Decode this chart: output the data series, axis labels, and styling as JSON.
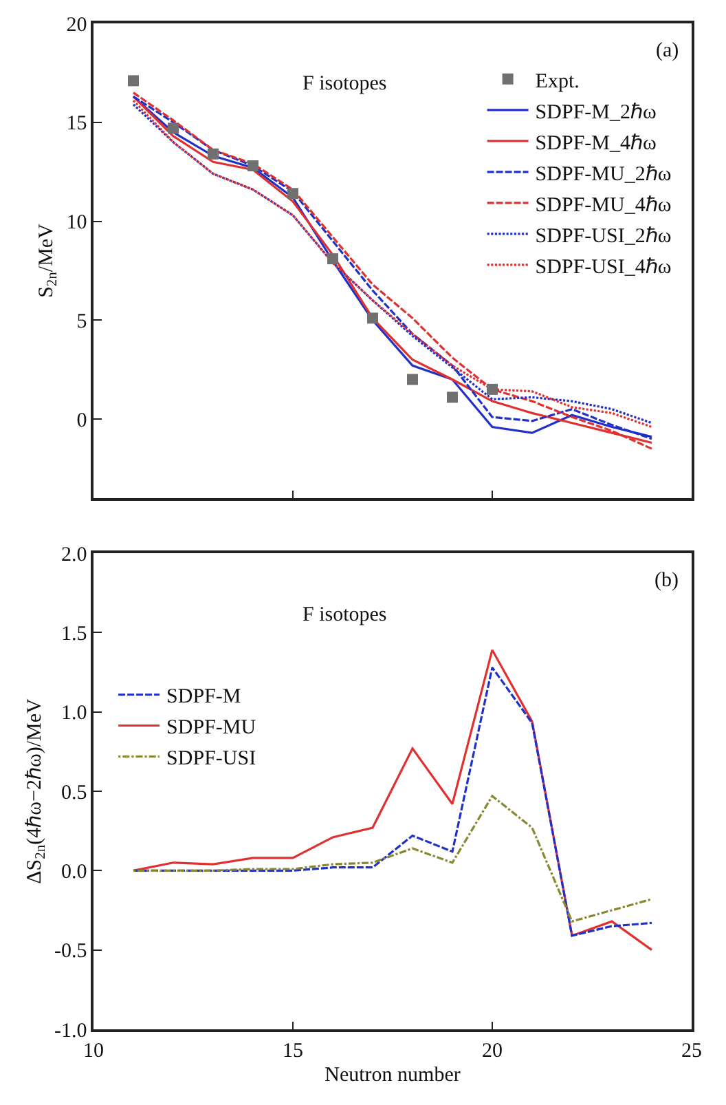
{
  "chart_data": [
    {
      "type": "line",
      "ylabel": "S$_{2n}$/MeV",
      "annotations": [
        "F isotopes",
        "(a)"
      ],
      "x": [
        11,
        12,
        13,
        14,
        15,
        16,
        17,
        18,
        19,
        20,
        21,
        22,
        23,
        24
      ],
      "xlim": [
        10,
        25
      ],
      "xticks": [
        10,
        15,
        20,
        25
      ],
      "ylim": [
        -4,
        20
      ],
      "yticks": [
        0,
        5,
        10,
        15,
        20
      ],
      "legend": "top right",
      "tick_labels": "y",
      "series": [
        {
          "name": "Expt.",
          "type": "scatter",
          "marker": "square",
          "color": "#707070",
          "x": [
            11,
            12,
            13,
            14,
            15,
            16,
            17,
            18,
            19,
            20
          ],
          "values": [
            17.1,
            14.7,
            13.4,
            12.8,
            11.4,
            8.1,
            5.1,
            2.0,
            1.1,
            1.5
          ]
        },
        {
          "name": "SDPF-M_2ℏω",
          "color": "#2030c8",
          "line_style": "solid",
          "values": [
            16.3,
            14.5,
            13.3,
            12.7,
            11.2,
            8.0,
            5.0,
            2.7,
            2.0,
            -0.4,
            -0.7,
            0.2,
            -0.4,
            -0.9
          ]
        },
        {
          "name": "SDPF-M_4ℏω",
          "color": "#e03030",
          "line_style": "solid",
          "values": [
            16.3,
            14.3,
            13.0,
            12.6,
            11.0,
            8.3,
            5.1,
            3.0,
            2.0,
            0.9,
            0.3,
            -0.2,
            -0.7,
            -1.2
          ]
        },
        {
          "name": "SDPF-MU_2ℏω",
          "color": "#2030c8",
          "line_style": "dashed",
          "values": [
            16.3,
            15.0,
            13.6,
            12.8,
            11.5,
            9.0,
            6.5,
            4.3,
            2.7,
            0.1,
            -0.1,
            0.5,
            -0.3,
            -1.0
          ]
        },
        {
          "name": "SDPF-MU_4ℏω",
          "color": "#e03030",
          "line_style": "dashed",
          "values": [
            16.5,
            15.1,
            13.6,
            12.9,
            11.6,
            9.2,
            6.8,
            5.1,
            3.1,
            1.5,
            0.9,
            0.1,
            -0.6,
            -1.5
          ]
        },
        {
          "name": "SDPF-USI_2ℏω",
          "color": "#2030c8",
          "line_style": "dotted",
          "values": [
            15.9,
            14.0,
            12.4,
            11.6,
            10.3,
            7.9,
            6.0,
            4.2,
            2.6,
            1.0,
            1.1,
            0.9,
            0.5,
            -0.2
          ]
        },
        {
          "name": "SDPF-USI_4ℏω",
          "color": "#e03030",
          "line_style": "dotted",
          "values": [
            16.1,
            14.0,
            12.4,
            11.6,
            10.3,
            7.9,
            6.0,
            4.3,
            2.7,
            1.5,
            1.4,
            0.6,
            0.3,
            -0.4
          ]
        }
      ]
    },
    {
      "type": "line",
      "ylabel": "ΔS$_{2n}$(4ℏω−2ℏω)/MeV",
      "xlabel": "Neutron number",
      "annotations": [
        "F isotopes",
        "(b)"
      ],
      "x": [
        11,
        12,
        13,
        14,
        15,
        16,
        17,
        18,
        19,
        20,
        21,
        22,
        23,
        24
      ],
      "xlim": [
        10,
        25
      ],
      "xticks": [
        10,
        15,
        20,
        25
      ],
      "ylim": [
        -1.0,
        2.0
      ],
      "yticks": [
        {
          "value": -1,
          "label": "-1.0"
        },
        {
          "value": -0.5,
          "label": "-0.5"
        },
        {
          "value": 0,
          "label": "0.0"
        },
        {
          "value": 0.5,
          "label": "0.5"
        },
        {
          "value": 1,
          "label": "1.0"
        },
        {
          "value": 1.5,
          "label": "1.5"
        },
        {
          "value": 2,
          "label": "2.0"
        }
      ],
      "legend": "left",
      "series": [
        {
          "name": "SDPF-M",
          "color": "#2030c8",
          "line_style": "dashed",
          "values": [
            0,
            0,
            0,
            0,
            0,
            0.02,
            0.02,
            0.22,
            0.12,
            1.28,
            0.93,
            -0.41,
            -0.35,
            -0.33
          ]
        },
        {
          "name": "SDPF-MU",
          "color": "#e03030",
          "line_style": "solid",
          "values": [
            0,
            0.05,
            0.04,
            0.08,
            0.08,
            0.21,
            0.27,
            0.77,
            0.42,
            1.39,
            0.94,
            -0.41,
            -0.32,
            -0.5
          ]
        },
        {
          "name": "SDPF-USI",
          "color": "#888833",
          "line_style": "dashdot",
          "values": [
            0,
            0,
            0,
            0.01,
            0.01,
            0.04,
            0.05,
            0.14,
            0.05,
            0.47,
            0.27,
            -0.32,
            -0.25,
            -0.18
          ]
        }
      ]
    }
  ]
}
